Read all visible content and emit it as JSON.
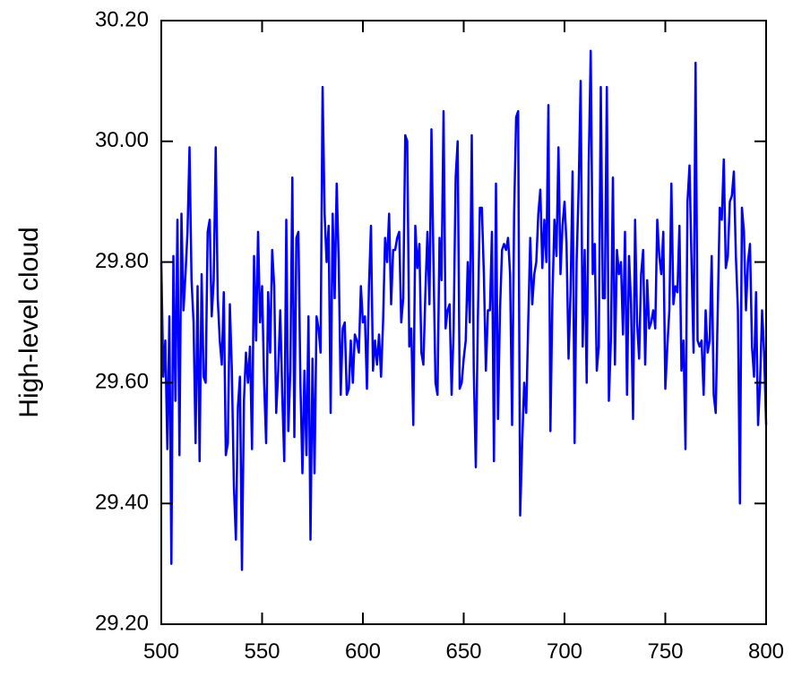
{
  "chart_data": {
    "type": "line",
    "ylabel": "High-level cloud",
    "color": "#0000ff",
    "x": [
      500,
      501,
      502,
      503,
      504,
      505,
      506,
      507,
      508,
      509,
      510,
      511,
      512,
      513,
      514,
      515,
      516,
      517,
      518,
      519,
      520,
      521,
      522,
      523,
      524,
      525,
      526,
      527,
      528,
      529,
      530,
      531,
      532,
      533,
      534,
      535,
      536,
      537,
      538,
      539,
      540,
      541,
      542,
      543,
      544,
      545,
      546,
      547,
      548,
      549,
      550,
      551,
      552,
      553,
      554,
      555,
      556,
      557,
      558,
      559,
      560,
      561,
      562,
      563,
      564,
      565,
      566,
      567,
      568,
      569,
      570,
      571,
      572,
      573,
      574,
      575,
      576,
      577,
      578,
      579,
      580,
      581,
      582,
      583,
      584,
      585,
      586,
      587,
      588,
      589,
      590,
      591,
      592,
      593,
      594,
      595,
      596,
      597,
      598,
      599,
      600,
      601,
      602,
      603,
      604,
      605,
      606,
      607,
      608,
      609,
      610,
      611,
      612,
      613,
      614,
      615,
      616,
      617,
      618,
      619,
      620,
      621,
      622,
      623,
      624,
      625,
      626,
      627,
      628,
      629,
      630,
      631,
      632,
      633,
      634,
      635,
      636,
      637,
      638,
      639,
      640,
      641,
      642,
      643,
      644,
      645,
      646,
      647,
      648,
      649,
      650,
      651,
      652,
      653,
      654,
      655,
      656,
      657,
      658,
      659,
      660,
      661,
      662,
      663,
      664,
      665,
      666,
      667,
      668,
      669,
      670,
      671,
      672,
      673,
      674,
      675,
      676,
      677,
      678,
      679,
      680,
      681,
      682,
      683,
      684,
      685,
      686,
      687,
      688,
      689,
      690,
      691,
      692,
      693,
      694,
      695,
      696,
      697,
      698,
      699,
      700,
      701,
      702,
      703,
      704,
      705,
      706,
      707,
      708,
      709,
      710,
      711,
      712,
      713,
      714,
      715,
      716,
      717,
      718,
      719,
      720,
      721,
      722,
      723,
      724,
      725,
      726,
      727,
      728,
      729,
      730,
      731,
      732,
      733,
      734,
      735,
      736,
      737,
      738,
      739,
      740,
      741,
      742,
      743,
      744,
      745,
      746,
      747,
      748,
      749,
      750,
      751,
      752,
      753,
      754,
      755,
      756,
      757,
      758,
      759,
      760,
      761,
      762,
      763,
      764,
      765,
      766,
      767,
      768,
      769,
      770,
      771,
      772,
      773,
      774,
      775,
      776,
      777,
      778,
      779,
      780,
      781,
      782,
      783,
      784,
      785,
      786,
      787,
      788,
      789,
      790,
      791,
      792,
      793,
      794,
      795,
      796,
      797,
      798,
      799,
      800
    ],
    "values": [
      29.8,
      29.61,
      29.67,
      29.49,
      29.71,
      29.3,
      29.81,
      29.57,
      29.87,
      29.48,
      29.88,
      29.72,
      29.78,
      29.85,
      29.99,
      29.77,
      29.7,
      29.5,
      29.76,
      29.47,
      29.78,
      29.61,
      29.6,
      29.85,
      29.87,
      29.71,
      29.77,
      29.99,
      29.74,
      29.67,
      29.63,
      29.75,
      29.48,
      29.5,
      29.73,
      29.62,
      29.43,
      29.34,
      29.56,
      29.61,
      29.29,
      29.57,
      29.65,
      29.6,
      29.66,
      29.49,
      29.81,
      29.67,
      29.85,
      29.7,
      29.76,
      29.6,
      29.5,
      29.75,
      29.65,
      29.82,
      29.76,
      29.55,
      29.62,
      29.72,
      29.58,
      29.47,
      29.87,
      29.52,
      29.62,
      29.94,
      29.51,
      29.84,
      29.85,
      29.6,
      29.45,
      29.62,
      29.48,
      29.71,
      29.34,
      29.64,
      29.45,
      29.71,
      29.69,
      29.65,
      30.09,
      29.88,
      29.8,
      29.86,
      29.55,
      29.88,
      29.74,
      29.93,
      29.8,
      29.58,
      29.69,
      29.7,
      29.58,
      29.59,
      29.67,
      29.6,
      29.68,
      29.67,
      29.65,
      29.76,
      29.7,
      29.71,
      29.59,
      29.76,
      29.86,
      29.62,
      29.67,
      29.63,
      29.68,
      29.61,
      29.7,
      29.84,
      29.8,
      29.88,
      29.73,
      29.82,
      29.82,
      29.84,
      29.85,
      29.7,
      29.74,
      30.01,
      30.0,
      29.66,
      29.69,
      29.53,
      29.86,
      29.79,
      29.83,
      29.65,
      29.63,
      29.75,
      29.85,
      29.73,
      30.02,
      29.8,
      29.6,
      29.58,
      29.84,
      29.77,
      30.05,
      29.69,
      29.72,
      29.73,
      29.58,
      29.69,
      29.94,
      30.0,
      29.59,
      29.6,
      29.64,
      29.67,
      29.8,
      29.7,
      30.01,
      29.62,
      29.46,
      29.7,
      29.89,
      29.89,
      29.78,
      29.62,
      29.72,
      29.72,
      29.85,
      29.47,
      29.93,
      29.54,
      29.72,
      29.82,
      29.83,
      29.82,
      29.84,
      29.78,
      29.53,
      29.88,
      30.04,
      30.05,
      29.38,
      29.5,
      29.6,
      29.55,
      29.7,
      29.84,
      29.73,
      29.78,
      29.8,
      29.88,
      29.92,
      29.79,
      29.87,
      29.8,
      30.06,
      29.52,
      29.74,
      29.87,
      29.81,
      29.99,
      29.78,
      29.86,
      29.9,
      29.83,
      29.64,
      29.75,
      29.95,
      29.5,
      29.8,
      29.92,
      30.1,
      29.66,
      29.82,
      29.6,
      29.96,
      30.15,
      29.78,
      29.83,
      29.62,
      29.66,
      30.09,
      29.74,
      29.74,
      30.09,
      29.57,
      29.67,
      29.94,
      29.63,
      29.82,
      29.78,
      29.8,
      29.68,
      29.85,
      29.58,
      29.81,
      29.73,
      29.54,
      29.87,
      29.7,
      29.64,
      29.78,
      29.82,
      29.63,
      29.77,
      29.69,
      29.7,
      29.72,
      29.69,
      29.87,
      29.81,
      29.78,
      29.85,
      29.59,
      29.66,
      29.72,
      29.93,
      29.73,
      29.76,
      29.75,
      29.86,
      29.62,
      29.67,
      29.49,
      29.9,
      29.96,
      29.8,
      29.65,
      30.13,
      29.67,
      29.66,
      29.67,
      29.58,
      29.72,
      29.65,
      29.67,
      29.81,
      29.58,
      29.55,
      29.72,
      29.89,
      29.87,
      29.97,
      29.79,
      29.81,
      29.9,
      29.91,
      29.95,
      29.81,
      29.72,
      29.4,
      29.89,
      29.85,
      29.72,
      29.8,
      29.83,
      29.66,
      29.61,
      29.75,
      29.53,
      29.6,
      29.72,
      29.65,
      29.53
    ],
    "xlim": [
      500,
      800
    ],
    "xticks": [
      500,
      550,
      600,
      650,
      700,
      750,
      800
    ],
    "ylim": [
      29.2,
      30.2
    ],
    "yticks": [
      {
        "value": 29.2,
        "label": "29.20"
      },
      {
        "value": 29.4,
        "label": "29.40"
      },
      {
        "value": 29.6,
        "label": "29.60"
      },
      {
        "value": 29.8,
        "label": "29.80"
      },
      {
        "value": 30.0,
        "label": "30.00"
      },
      {
        "value": 30.2,
        "label": "30.20"
      }
    ]
  }
}
